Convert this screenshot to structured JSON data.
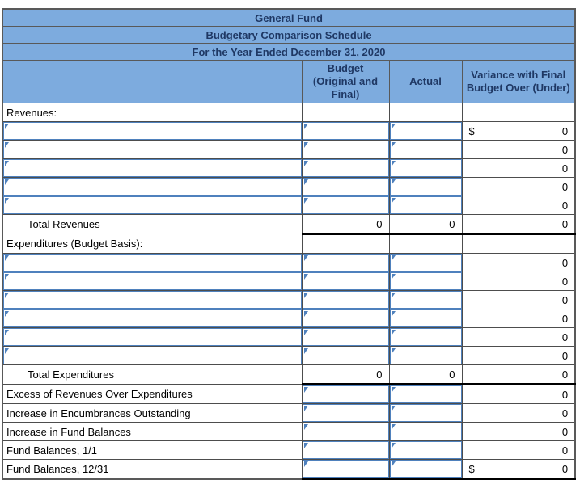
{
  "header": {
    "title_lines": [
      "General Fund",
      "Budgetary Comparison Schedule",
      "For the Year Ended December 31, 2020"
    ],
    "columns": {
      "budget": "Budget (Original and Final)",
      "actual": "Actual",
      "variance": "Variance with Final Budget Over (Under)"
    }
  },
  "body": {
    "revenues": {
      "section_label": "Revenues:",
      "input_rows": [
        {
          "variance_prefix": "$",
          "variance": "0"
        },
        {
          "variance": "0"
        },
        {
          "variance": "0"
        },
        {
          "variance": "0"
        },
        {
          "variance": "0"
        }
      ],
      "total": {
        "label": "Total Revenues",
        "budget": "0",
        "actual": "0",
        "variance": "0"
      }
    },
    "expenditures": {
      "section_label": "Expenditures (Budget Basis):",
      "input_rows": [
        {
          "variance": "0"
        },
        {
          "variance": "0"
        },
        {
          "variance": "0"
        },
        {
          "variance": "0"
        },
        {
          "variance": "0"
        },
        {
          "variance": "0"
        }
      ],
      "total": {
        "label": "Total Expenditures",
        "budget": "0",
        "actual": "0",
        "variance": "0"
      }
    },
    "summary_rows": [
      {
        "label": "Excess of Revenues Over Expenditures",
        "variance": "0"
      },
      {
        "label": "Increase in Encumbrances Outstanding",
        "variance": "0"
      },
      {
        "label": "Increase in Fund Balances",
        "variance": "0"
      },
      {
        "label": "Fund Balances, 1/1",
        "variance": "0"
      },
      {
        "label": "Fund Balances, 12/31",
        "variance_prefix": "$",
        "variance": "0"
      }
    ]
  },
  "colors": {
    "header_bg": "#7dabde",
    "header_text": "#1f3864",
    "input_border": "#4f81bd",
    "grid_line": "#4d4d4d",
    "outer_border": "#595959",
    "total_line": "#000000"
  }
}
